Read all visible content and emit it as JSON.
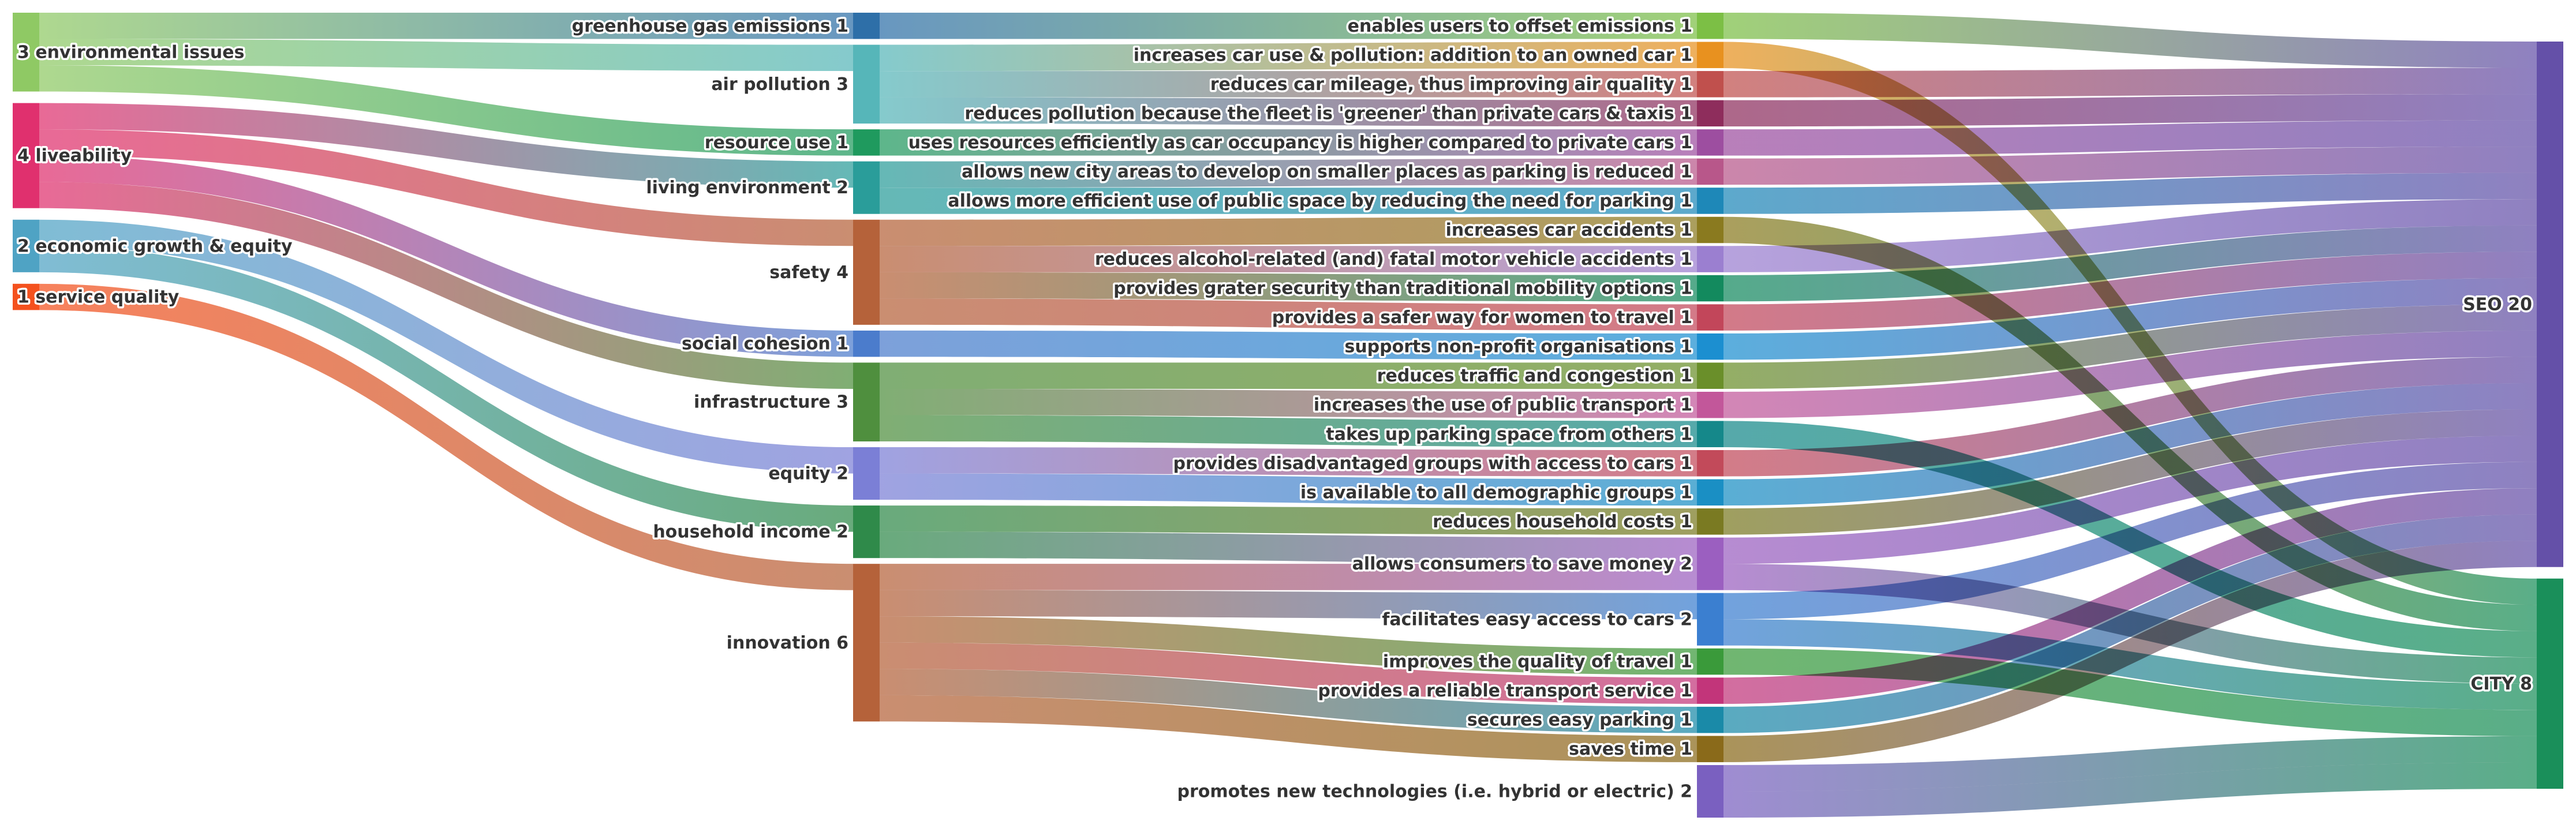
{
  "chart_data": {
    "type": "sankey",
    "title": "",
    "colors": {
      "environmental": "#8fc964",
      "liveability": "#e0306e",
      "economic": "#4fa3c4",
      "service": "#f4511e",
      "city": "#1a8f5a",
      "seo": "#6450a8"
    },
    "nodes": [
      {
        "id": "env",
        "label": "3 environmental issues",
        "column": 0,
        "value": 3,
        "color": "#8fc964"
      },
      {
        "id": "live",
        "label": "4 liveability",
        "column": 0,
        "value": 4,
        "color": "#e0306e"
      },
      {
        "id": "econ",
        "label": "2 economic growth & equity",
        "column": 0,
        "value": 2,
        "color": "#4fa3c4"
      },
      {
        "id": "svc",
        "label": "1 service quality",
        "column": 0,
        "value": 1,
        "color": "#f4511e"
      },
      {
        "id": "ghg",
        "label": "greenhouse gas emissions 1",
        "column": 1,
        "value": 1,
        "color": "#2e6fa8"
      },
      {
        "id": "air",
        "label": "air pollution 3",
        "column": 1,
        "value": 3,
        "color": "#56b6b9"
      },
      {
        "id": "res",
        "label": "resource use 1",
        "column": 1,
        "value": 1,
        "color": "#1f9a5e"
      },
      {
        "id": "livenv",
        "label": "living environment 2",
        "column": 1,
        "value": 2,
        "color": "#2a9d9a"
      },
      {
        "id": "safety",
        "label": "safety 4",
        "column": 1,
        "value": 4,
        "color": "#b5623a"
      },
      {
        "id": "social",
        "label": "social cohesion 1",
        "column": 1,
        "value": 1,
        "color": "#4b7ccc"
      },
      {
        "id": "infra",
        "label": "infrastructure 3",
        "column": 1,
        "value": 3,
        "color": "#4f8f3e"
      },
      {
        "id": "equity",
        "label": "equity 2",
        "column": 1,
        "value": 2,
        "color": "#7b7fd6"
      },
      {
        "id": "hhinc",
        "label": "household income 2",
        "column": 1,
        "value": 2,
        "color": "#2f8a4a"
      },
      {
        "id": "innov",
        "label": "innovation 6",
        "column": 1,
        "value": 6,
        "color": "#b5623a"
      },
      {
        "id": "b1",
        "label": "enables users to offset emissions 1",
        "column": 2,
        "value": 1,
        "color": "#7cbf45"
      },
      {
        "id": "b2",
        "label": "increases car use & pollution: addition to an owned car 1",
        "column": 2,
        "value": 1,
        "color": "#e8911f"
      },
      {
        "id": "b3",
        "label": "reduces car mileage, thus improving air quality 1",
        "column": 2,
        "value": 1,
        "color": "#c0504d"
      },
      {
        "id": "b4",
        "label": "reduces pollution because the fleet is 'greener' than private cars & taxis 1",
        "column": 2,
        "value": 1,
        "color": "#8e2d5c"
      },
      {
        "id": "b5",
        "label": "uses resources efficiently as car occupancy is higher compared to private cars 1",
        "column": 2,
        "value": 1,
        "color": "#9d4ea0"
      },
      {
        "id": "b6",
        "label": "allows new city areas to develop on smaller places as parking is reduced 1",
        "column": 2,
        "value": 1,
        "color": "#b8578a"
      },
      {
        "id": "b7",
        "label": "allows more efficient use of public space by reducing the need for parking 1",
        "column": 2,
        "value": 1,
        "color": "#1e88b8"
      },
      {
        "id": "b8",
        "label": "increases car accidents 1",
        "column": 2,
        "value": 1,
        "color": "#8a7a1f"
      },
      {
        "id": "b9",
        "label": "reduces alcohol-related (and) fatal motor vehicle accidents 1",
        "column": 2,
        "value": 1,
        "color": "#9b7fd0"
      },
      {
        "id": "b10",
        "label": "provides grater security than traditional mobility options 1",
        "column": 2,
        "value": 1,
        "color": "#138a5e"
      },
      {
        "id": "b11",
        "label": "provides a safer way for women to travel 1",
        "column": 2,
        "value": 1,
        "color": "#c2465a"
      },
      {
        "id": "b12",
        "label": "supports non-profit organisations 1",
        "column": 2,
        "value": 1,
        "color": "#1c8fd0"
      },
      {
        "id": "b13",
        "label": "reduces traffic and congestion 1",
        "column": 2,
        "value": 1,
        "color": "#6a8f2a"
      },
      {
        "id": "b14",
        "label": "increases the use of public transport 1",
        "column": 2,
        "value": 1,
        "color": "#c2579a"
      },
      {
        "id": "b15",
        "label": "takes up parking space from others 1",
        "column": 2,
        "value": 1,
        "color": "#15888a"
      },
      {
        "id": "b16",
        "label": "provides disadvantaged groups with access to cars 1",
        "column": 2,
        "value": 1,
        "color": "#c24a5a"
      },
      {
        "id": "b17",
        "label": "is available to all demographic groups 1",
        "column": 2,
        "value": 1,
        "color": "#1a8fc4"
      },
      {
        "id": "b18",
        "label": "reduces household costs 1",
        "column": 2,
        "value": 1,
        "color": "#7a7a22"
      },
      {
        "id": "b19",
        "label": "allows consumers to save money 2",
        "column": 2,
        "value": 2,
        "color": "#9b5fc0"
      },
      {
        "id": "b20",
        "label": "facilitates easy access to cars 2",
        "column": 2,
        "value": 2,
        "color": "#3b7fd0"
      },
      {
        "id": "b21",
        "label": "improves the quality of travel 1",
        "column": 2,
        "value": 1,
        "color": "#3a9a3a"
      },
      {
        "id": "b22",
        "label": "provides a reliable transport service 1",
        "column": 2,
        "value": 1,
        "color": "#c2357a"
      },
      {
        "id": "b23",
        "label": "secures easy parking  1",
        "column": 2,
        "value": 1,
        "color": "#1a8aa8"
      },
      {
        "id": "b24",
        "label": "saves time 1",
        "column": 2,
        "value": 1,
        "color": "#8a6a1a"
      },
      {
        "id": "b25",
        "label": "promotes new technologies (i.e. hybrid or electric) 2",
        "column": 2,
        "value": 2,
        "color": "#7a60c0"
      },
      {
        "id": "seo",
        "label": "SEO 20",
        "column": 3,
        "value": 20,
        "color": "#6450a8"
      },
      {
        "id": "city",
        "label": "CITY 8",
        "column": 3,
        "value": 8,
        "color": "#1a8f5a"
      }
    ],
    "links": [
      {
        "source": "env",
        "target": "ghg",
        "value": 1
      },
      {
        "source": "env",
        "target": "air",
        "value": 1
      },
      {
        "source": "env",
        "target": "res",
        "value": 1
      },
      {
        "source": "live",
        "target": "livenv",
        "value": 1
      },
      {
        "source": "live",
        "target": "safety",
        "value": 1
      },
      {
        "source": "live",
        "target": "social",
        "value": 1
      },
      {
        "source": "live",
        "target": "infra",
        "value": 1
      },
      {
        "source": "econ",
        "target": "equity",
        "value": 1
      },
      {
        "source": "econ",
        "target": "hhinc",
        "value": 1
      },
      {
        "source": "svc",
        "target": "innov",
        "value": 1
      },
      {
        "source": "ghg",
        "target": "b1",
        "value": 1
      },
      {
        "source": "air",
        "target": "b2",
        "value": 1
      },
      {
        "source": "air",
        "target": "b3",
        "value": 1
      },
      {
        "source": "air",
        "target": "b4",
        "value": 1
      },
      {
        "source": "res",
        "target": "b5",
        "value": 1
      },
      {
        "source": "livenv",
        "target": "b6",
        "value": 1
      },
      {
        "source": "livenv",
        "target": "b7",
        "value": 1
      },
      {
        "source": "safety",
        "target": "b8",
        "value": 1
      },
      {
        "source": "safety",
        "target": "b9",
        "value": 1
      },
      {
        "source": "safety",
        "target": "b10",
        "value": 1
      },
      {
        "source": "safety",
        "target": "b11",
        "value": 1
      },
      {
        "source": "social",
        "target": "b12",
        "value": 1
      },
      {
        "source": "infra",
        "target": "b13",
        "value": 1
      },
      {
        "source": "infra",
        "target": "b14",
        "value": 1
      },
      {
        "source": "infra",
        "target": "b15",
        "value": 1
      },
      {
        "source": "equity",
        "target": "b16",
        "value": 1
      },
      {
        "source": "equity",
        "target": "b17",
        "value": 1
      },
      {
        "source": "hhinc",
        "target": "b18",
        "value": 1
      },
      {
        "source": "hhinc",
        "target": "b19",
        "value": 1
      },
      {
        "source": "innov",
        "target": "b19",
        "value": 1
      },
      {
        "source": "innov",
        "target": "b20",
        "value": 1
      },
      {
        "source": "innov",
        "target": "b21",
        "value": 1
      },
      {
        "source": "innov",
        "target": "b22",
        "value": 1
      },
      {
        "source": "innov",
        "target": "b23",
        "value": 1
      },
      {
        "source": "innov",
        "target": "b24",
        "value": 1
      },
      {
        "source": "b1",
        "target": "seo",
        "value": 1
      },
      {
        "source": "b2",
        "target": "city",
        "value": 1
      },
      {
        "source": "b3",
        "target": "seo",
        "value": 1
      },
      {
        "source": "b4",
        "target": "seo",
        "value": 1
      },
      {
        "source": "b5",
        "target": "seo",
        "value": 1
      },
      {
        "source": "b6",
        "target": "seo",
        "value": 1
      },
      {
        "source": "b7",
        "target": "seo",
        "value": 1
      },
      {
        "source": "b8",
        "target": "city",
        "value": 1
      },
      {
        "source": "b9",
        "target": "seo",
        "value": 1
      },
      {
        "source": "b10",
        "target": "seo",
        "value": 1
      },
      {
        "source": "b11",
        "target": "seo",
        "value": 1
      },
      {
        "source": "b12",
        "target": "seo",
        "value": 1
      },
      {
        "source": "b13",
        "target": "seo",
        "value": 1
      },
      {
        "source": "b14",
        "target": "seo",
        "value": 1
      },
      {
        "source": "b15",
        "target": "city",
        "value": 1
      },
      {
        "source": "b16",
        "target": "seo",
        "value": 1
      },
      {
        "source": "b17",
        "target": "seo",
        "value": 1
      },
      {
        "source": "b18",
        "target": "seo",
        "value": 1
      },
      {
        "source": "b19",
        "target": "seo",
        "value": 1
      },
      {
        "source": "b19",
        "target": "city",
        "value": 1
      },
      {
        "source": "b20",
        "target": "seo",
        "value": 1
      },
      {
        "source": "b20",
        "target": "city",
        "value": 1
      },
      {
        "source": "b21",
        "target": "city",
        "value": 1
      },
      {
        "source": "b22",
        "target": "seo",
        "value": 1
      },
      {
        "source": "b23",
        "target": "seo",
        "value": 1
      },
      {
        "source": "b24",
        "target": "seo",
        "value": 1
      },
      {
        "source": "b25",
        "target": "city",
        "value": 1
      },
      {
        "source": "b25",
        "target": "city",
        "value": 1
      }
    ]
  }
}
